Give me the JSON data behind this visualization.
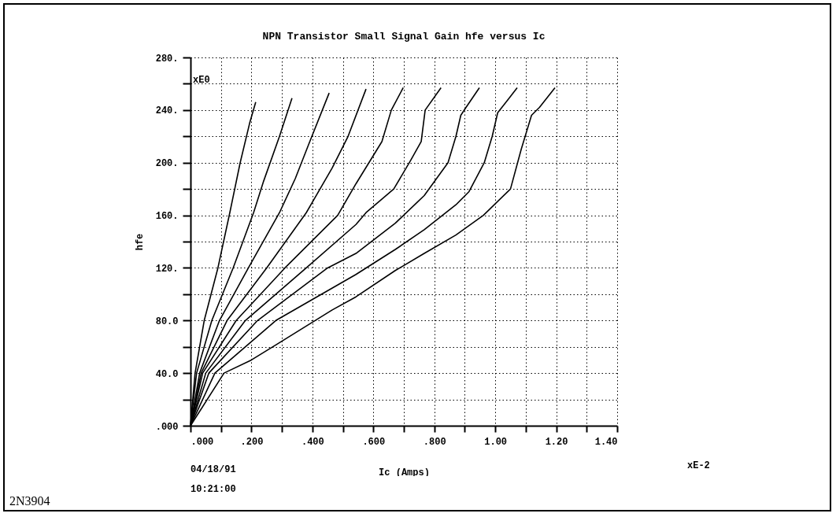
{
  "chart_data": {
    "type": "line",
    "title": "NPN Transistor Small Signal Gain hfe versus Ic",
    "xlabel": "Ic (Amps)",
    "ylabel": "hfe",
    "xlim": [
      0,
      1.4
    ],
    "ylim": [
      0,
      280
    ],
    "xticks": [
      {
        "value": 0,
        "label": ".000"
      },
      {
        "value": 0.1,
        "label": null
      },
      {
        "value": 0.2,
        "label": ".200"
      },
      {
        "value": 0.3,
        "label": null
      },
      {
        "value": 0.4,
        "label": ".400"
      },
      {
        "value": 0.5,
        "label": null
      },
      {
        "value": 0.6,
        "label": ".600"
      },
      {
        "value": 0.7,
        "label": null
      },
      {
        "value": 0.8,
        "label": ".800"
      },
      {
        "value": 0.9,
        "label": null
      },
      {
        "value": 1.0,
        "label": "1.00"
      },
      {
        "value": 1.1,
        "label": null
      },
      {
        "value": 1.2,
        "label": "1.20"
      },
      {
        "value": 1.3,
        "label": null
      },
      {
        "value": 1.4,
        "label": "1.40"
      }
    ],
    "yticks": [
      {
        "value": 0,
        "label": ".000"
      },
      {
        "value": 20,
        "label": null
      },
      {
        "value": 40,
        "label": "40.0"
      },
      {
        "value": 60,
        "label": null
      },
      {
        "value": 80,
        "label": "80.0"
      },
      {
        "value": 100,
        "label": null
      },
      {
        "value": 120,
        "label": "120."
      },
      {
        "value": 140,
        "label": null
      },
      {
        "value": 160,
        "label": "160."
      },
      {
        "value": 180,
        "label": null
      },
      {
        "value": 200,
        "label": "200."
      },
      {
        "value": 220,
        "label": null
      },
      {
        "value": 240,
        "label": "240."
      },
      {
        "value": 260,
        "label": null
      },
      {
        "value": 280,
        "label": "280."
      }
    ],
    "grid": true,
    "line_style": "solid",
    "annotations": [
      "xE0",
      "xE-2",
      "04/18/91",
      "10:21:00",
      "2N3904"
    ],
    "series": [
      {
        "color": "#000000",
        "x": [
          0,
          0.015,
          0.045,
          0.09,
          0.129,
          0.163,
          0.194,
          0.214
        ],
        "values": [
          0,
          40,
          80,
          120,
          162,
          200,
          230,
          246
        ]
      },
      {
        "color": "#000000",
        "x": [
          0,
          0.02,
          0.07,
          0.14,
          0.207,
          0.24,
          0.292,
          0.333
        ],
        "values": [
          0,
          40,
          80,
          120,
          162,
          186,
          220,
          249
        ]
      },
      {
        "color": "#000000",
        "x": [
          0,
          0.03,
          0.095,
          0.19,
          0.292,
          0.344,
          0.388,
          0.455
        ],
        "values": [
          0,
          40,
          80,
          120,
          162,
          188,
          214,
          253
        ]
      },
      {
        "color": "#000000",
        "x": [
          0,
          0.035,
          0.12,
          0.25,
          0.38,
          0.465,
          0.517,
          0.576
        ],
        "values": [
          0,
          40,
          80,
          120,
          162,
          196,
          220,
          256
        ]
      },
      {
        "color": "#000000",
        "x": [
          0,
          0.04,
          0.15,
          0.31,
          0.483,
          0.543,
          0.628,
          0.659,
          0.698
        ],
        "values": [
          0,
          40,
          80,
          120,
          160,
          184,
          216,
          240,
          257
        ]
      },
      {
        "color": "#000000",
        "x": [
          0,
          0.05,
          0.18,
          0.38,
          0.543,
          0.576,
          0.667,
          0.723,
          0.757,
          0.77,
          0.822
        ],
        "values": [
          0,
          40,
          80,
          120,
          153,
          162,
          180,
          202,
          216,
          240,
          257
        ]
      },
      {
        "color": "#000000",
        "x": [
          0,
          0.06,
          0.22,
          0.45,
          0.543,
          0.672,
          0.767,
          0.845,
          0.871,
          0.887,
          0.904,
          0.948
        ],
        "values": [
          0,
          40,
          80,
          120,
          131,
          154,
          175,
          200,
          220,
          236,
          242,
          257
        ]
      },
      {
        "color": "#000000",
        "x": [
          0,
          0.08,
          0.28,
          0.543,
          0.672,
          0.767,
          0.871,
          0.914,
          0.964,
          0.99,
          1.008,
          1.042,
          1.072
        ],
        "values": [
          0,
          40,
          80,
          115,
          134,
          149,
          168,
          178,
          200,
          220,
          238,
          248,
          257
        ]
      },
      {
        "color": "#000000",
        "x": [
          0,
          0.11,
          0.2,
          0.284,
          0.465,
          0.543,
          0.672,
          0.767,
          0.871,
          0.961,
          1.05,
          1.085,
          1.119,
          1.145,
          1.196
        ],
        "values": [
          0,
          40,
          50,
          62,
          88,
          98,
          118,
          131,
          145,
          160,
          180,
          210,
          236,
          242,
          257
        ]
      }
    ]
  }
}
